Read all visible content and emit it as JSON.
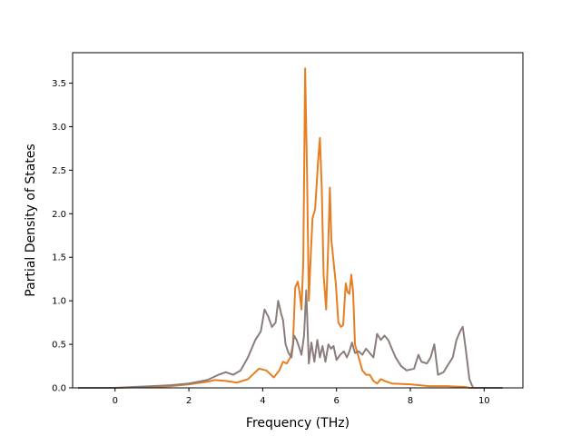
{
  "chart_data": {
    "type": "line",
    "title": "",
    "xlabel": "Frequency (THz)",
    "ylabel": "Partial Density of States",
    "xlim": [
      -1.15,
      11.05
    ],
    "ylim": [
      0.0,
      3.85
    ],
    "xticks": [
      0,
      2,
      4,
      6,
      8,
      10
    ],
    "yticks": [
      0.0,
      0.5,
      1.0,
      1.5,
      2.0,
      2.5,
      3.0,
      3.5
    ],
    "xtick_labels": [
      "0",
      "2",
      "4",
      "6",
      "8",
      "10"
    ],
    "ytick_labels": [
      "0.0",
      "0.5",
      "1.0",
      "1.5",
      "2.0",
      "2.5",
      "3.0",
      "3.5"
    ],
    "grid": false,
    "legend": "none",
    "series": [
      {
        "color": "#e67e22",
        "points": [
          [
            -1.0,
            0.0
          ],
          [
            0.0,
            0.0
          ],
          [
            1.0,
            0.01
          ],
          [
            1.5,
            0.02
          ],
          [
            2.0,
            0.04
          ],
          [
            2.5,
            0.07
          ],
          [
            2.7,
            0.09
          ],
          [
            3.0,
            0.08
          ],
          [
            3.3,
            0.06
          ],
          [
            3.6,
            0.1
          ],
          [
            3.9,
            0.22
          ],
          [
            4.1,
            0.2
          ],
          [
            4.3,
            0.12
          ],
          [
            4.45,
            0.2
          ],
          [
            4.55,
            0.3
          ],
          [
            4.65,
            0.28
          ],
          [
            4.75,
            0.35
          ],
          [
            4.82,
            0.5
          ],
          [
            4.88,
            1.15
          ],
          [
            4.95,
            1.22
          ],
          [
            5.0,
            1.1
          ],
          [
            5.05,
            0.9
          ],
          [
            5.1,
            1.45
          ],
          [
            5.15,
            3.67
          ],
          [
            5.2,
            2.5
          ],
          [
            5.25,
            1.0
          ],
          [
            5.3,
            1.5
          ],
          [
            5.35,
            1.95
          ],
          [
            5.42,
            2.05
          ],
          [
            5.5,
            2.6
          ],
          [
            5.55,
            2.87
          ],
          [
            5.6,
            2.3
          ],
          [
            5.65,
            1.3
          ],
          [
            5.72,
            0.9
          ],
          [
            5.78,
            1.7
          ],
          [
            5.82,
            2.3
          ],
          [
            5.86,
            1.7
          ],
          [
            5.92,
            1.45
          ],
          [
            5.98,
            1.2
          ],
          [
            6.05,
            0.75
          ],
          [
            6.12,
            0.7
          ],
          [
            6.18,
            0.72
          ],
          [
            6.25,
            1.2
          ],
          [
            6.3,
            1.1
          ],
          [
            6.35,
            1.08
          ],
          [
            6.4,
            1.3
          ],
          [
            6.45,
            1.1
          ],
          [
            6.5,
            0.5
          ],
          [
            6.6,
            0.35
          ],
          [
            6.7,
            0.2
          ],
          [
            6.8,
            0.15
          ],
          [
            6.9,
            0.15
          ],
          [
            7.0,
            0.08
          ],
          [
            7.1,
            0.05
          ],
          [
            7.2,
            0.1
          ],
          [
            7.3,
            0.08
          ],
          [
            7.5,
            0.05
          ],
          [
            8.0,
            0.04
          ],
          [
            8.5,
            0.02
          ],
          [
            9.0,
            0.02
          ],
          [
            9.5,
            0.01
          ],
          [
            9.6,
            0.0
          ],
          [
            10.5,
            0.0
          ]
        ]
      },
      {
        "color": "#8b7d7b",
        "points": [
          [
            -1.0,
            0.0
          ],
          [
            0.0,
            0.0
          ],
          [
            0.5,
            0.01
          ],
          [
            1.0,
            0.02
          ],
          [
            1.5,
            0.03
          ],
          [
            2.0,
            0.05
          ],
          [
            2.5,
            0.09
          ],
          [
            2.8,
            0.15
          ],
          [
            3.0,
            0.18
          ],
          [
            3.2,
            0.15
          ],
          [
            3.4,
            0.2
          ],
          [
            3.6,
            0.35
          ],
          [
            3.8,
            0.55
          ],
          [
            3.95,
            0.65
          ],
          [
            4.05,
            0.9
          ],
          [
            4.15,
            0.82
          ],
          [
            4.25,
            0.7
          ],
          [
            4.35,
            0.75
          ],
          [
            4.42,
            1.0
          ],
          [
            4.5,
            0.85
          ],
          [
            4.55,
            0.78
          ],
          [
            4.62,
            0.5
          ],
          [
            4.7,
            0.4
          ],
          [
            4.78,
            0.35
          ],
          [
            4.85,
            0.6
          ],
          [
            4.92,
            0.55
          ],
          [
            5.0,
            0.45
          ],
          [
            5.05,
            0.38
          ],
          [
            5.12,
            0.6
          ],
          [
            5.18,
            1.12
          ],
          [
            5.25,
            0.28
          ],
          [
            5.32,
            0.52
          ],
          [
            5.4,
            0.3
          ],
          [
            5.48,
            0.55
          ],
          [
            5.55,
            0.35
          ],
          [
            5.62,
            0.48
          ],
          [
            5.7,
            0.3
          ],
          [
            5.78,
            0.5
          ],
          [
            5.85,
            0.45
          ],
          [
            5.92,
            0.48
          ],
          [
            6.0,
            0.32
          ],
          [
            6.1,
            0.38
          ],
          [
            6.2,
            0.42
          ],
          [
            6.28,
            0.35
          ],
          [
            6.35,
            0.42
          ],
          [
            6.42,
            0.52
          ],
          [
            6.5,
            0.4
          ],
          [
            6.6,
            0.42
          ],
          [
            6.7,
            0.38
          ],
          [
            6.8,
            0.45
          ],
          [
            6.9,
            0.4
          ],
          [
            7.0,
            0.35
          ],
          [
            7.1,
            0.62
          ],
          [
            7.2,
            0.55
          ],
          [
            7.3,
            0.6
          ],
          [
            7.4,
            0.55
          ],
          [
            7.5,
            0.45
          ],
          [
            7.6,
            0.35
          ],
          [
            7.75,
            0.25
          ],
          [
            7.9,
            0.2
          ],
          [
            8.1,
            0.22
          ],
          [
            8.22,
            0.38
          ],
          [
            8.3,
            0.3
          ],
          [
            8.45,
            0.28
          ],
          [
            8.55,
            0.35
          ],
          [
            8.65,
            0.5
          ],
          [
            8.75,
            0.15
          ],
          [
            8.9,
            0.18
          ],
          [
            9.0,
            0.25
          ],
          [
            9.15,
            0.35
          ],
          [
            9.25,
            0.55
          ],
          [
            9.35,
            0.65
          ],
          [
            9.42,
            0.7
          ],
          [
            9.5,
            0.45
          ],
          [
            9.6,
            0.1
          ],
          [
            9.7,
            0.0
          ],
          [
            10.5,
            0.0
          ]
        ]
      }
    ]
  }
}
